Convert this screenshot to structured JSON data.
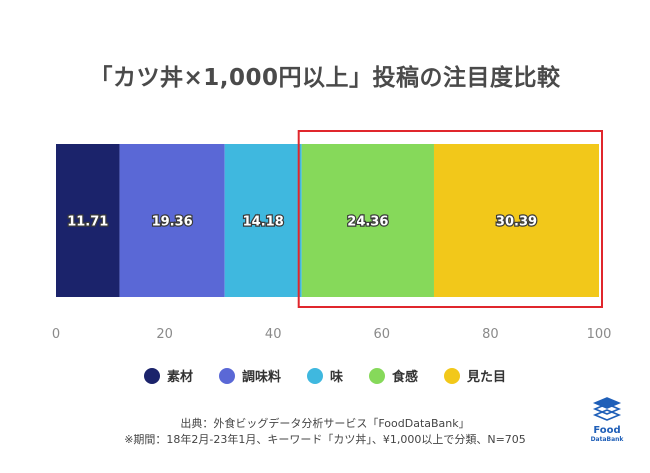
{
  "chart_data": {
    "type": "stacked-bar-horizontal",
    "title": "「カツ丼×1,000円以上」投稿の注目度比較",
    "categories": [
      "素材",
      "調味料",
      "味",
      "食感",
      "見た目"
    ],
    "values": [
      11.71,
      19.36,
      14.18,
      24.36,
      30.39
    ],
    "value_labels": [
      "11.71",
      "19.36",
      "14.18",
      "24.36",
      "30.39"
    ],
    "colors": [
      "#1b236b",
      "#5a68d6",
      "#3fb8df",
      "#86d95a",
      "#f2c81a"
    ],
    "x_ticks": [
      "0",
      "20",
      "40",
      "60",
      "80",
      "100"
    ],
    "xlim": [
      0,
      100
    ],
    "highlight": {
      "from_category": "食感",
      "to_category": "見た目",
      "color": "#e0262c"
    }
  },
  "source": {
    "line1": "出典：外食ビッグデータ分析サービス「FoodDataBank」",
    "line2": "※期間：18年2月-23年1月、キーワード「カツ丼」、¥1,000以上で分類、N=705"
  },
  "logo": {
    "line1": "Food",
    "line2": "DataBank",
    "color": "#1f5fb8"
  }
}
